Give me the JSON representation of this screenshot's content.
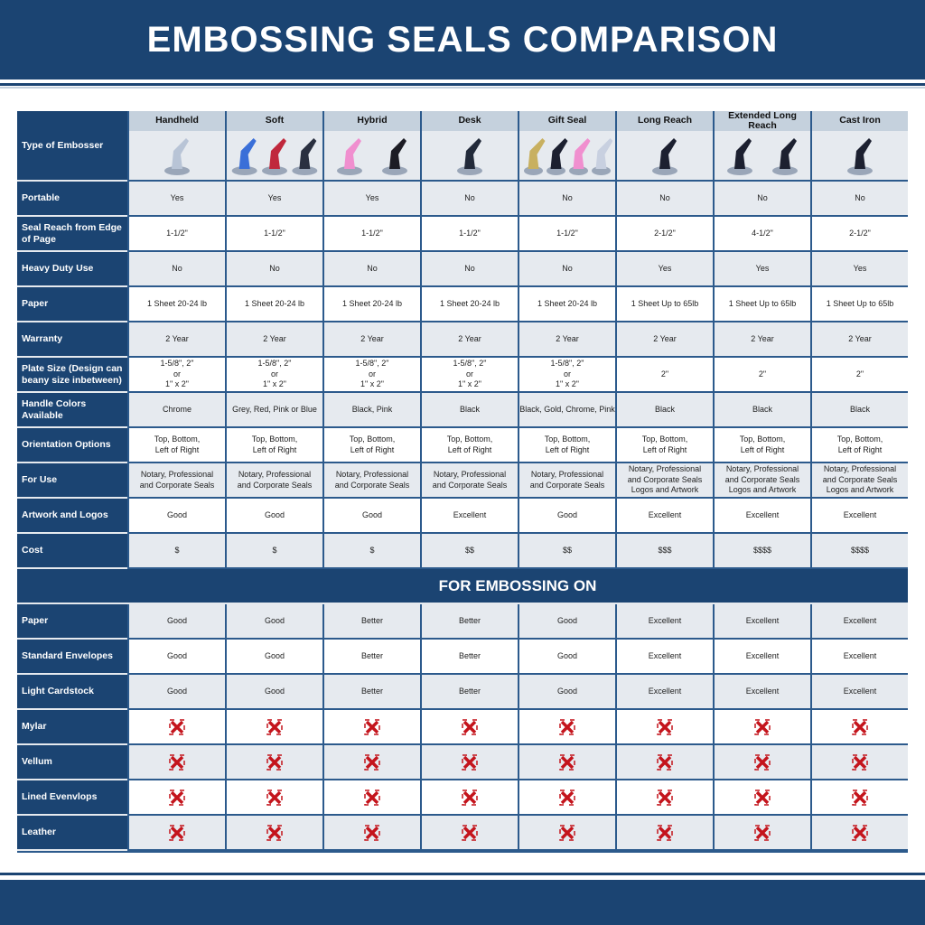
{
  "title": "EMBOSSING SEALS COMPARISON",
  "columns": [
    "Handheld",
    "Soft",
    "Hybrid",
    "Desk",
    "Gift Seal",
    "Long Reach",
    "Extended Long Reach",
    "Cast Iron"
  ],
  "type_label": "Type of Embosser",
  "product_colors": [
    [
      "#b8c4d6"
    ],
    [
      "#3a6fd8",
      "#c0283c",
      "#2a3040"
    ],
    [
      "#f08fcf",
      "#1c1c24"
    ],
    [
      "#222a3a"
    ],
    [
      "#c8b060",
      "#1c2030",
      "#f08fcf",
      "#c8d0e0"
    ],
    [
      "#1c2030"
    ],
    [
      "#1c2030",
      "#1c2030"
    ],
    [
      "#1c2030"
    ]
  ],
  "rows": [
    {
      "label": "Portable",
      "values": [
        "Yes",
        "Yes",
        "Yes",
        "No",
        "No",
        "No",
        "No",
        "No"
      ]
    },
    {
      "label": "Seal Reach from Edge of Page",
      "values": [
        "1-1/2\"",
        "1-1/2\"",
        "1-1/2\"",
        "1-1/2\"",
        "1-1/2\"",
        "2-1/2\"",
        "4-1/2\"",
        "2-1/2\""
      ]
    },
    {
      "label": "Heavy Duty Use",
      "values": [
        "No",
        "No",
        "No",
        "No",
        "No",
        "Yes",
        "Yes",
        "Yes"
      ]
    },
    {
      "label": "Paper",
      "values": [
        "1 Sheet 20-24 lb",
        "1 Sheet 20-24 lb",
        "1 Sheet 20-24 lb",
        "1 Sheet 20-24 lb",
        "1 Sheet 20-24 lb",
        "1 Sheet Up to 65lb",
        "1 Sheet Up to 65lb",
        "1 Sheet Up to 65lb"
      ]
    },
    {
      "label": "Warranty",
      "values": [
        "2 Year",
        "2 Year",
        "2 Year",
        "2 Year",
        "2 Year",
        "2 Year",
        "2 Year",
        "2 Year"
      ]
    },
    {
      "label": "Plate Size (Design can beany size inbetween)",
      "values": [
        "1-5/8\", 2\"\nor\n1\" x 2\"",
        "1-5/8\", 2\"\nor\n1\" x 2\"",
        "1-5/8\", 2\"\nor\n1\" x 2\"",
        "1-5/8\", 2\"\nor\n1\" x 2\"",
        "1-5/8\", 2\"\nor\n1\" x 2\"",
        "2\"",
        "2\"",
        "2\""
      ]
    },
    {
      "label": "Handle Colors Available",
      "values": [
        "Chrome",
        "Grey, Red, Pink or Blue",
        "Black, Pink",
        "Black",
        "Black, Gold, Chrome, Pink",
        "Black",
        "Black",
        "Black"
      ]
    },
    {
      "label": "Orientation Options",
      "values": [
        "Top, Bottom,\nLeft of Right",
        "Top, Bottom,\nLeft of Right",
        "Top, Bottom,\nLeft of Right",
        "Top, Bottom,\nLeft of Right",
        "Top, Bottom,\nLeft of Right",
        "Top, Bottom,\nLeft of Right",
        "Top, Bottom,\nLeft of Right",
        "Top, Bottom,\nLeft of Right"
      ]
    },
    {
      "label": "For Use",
      "values": [
        "Notary, Professional\nand Corporate Seals",
        "Notary, Professional\nand Corporate Seals",
        "Notary, Professional\nand Corporate Seals",
        "Notary, Professional\nand Corporate Seals",
        "Notary, Professional\nand Corporate Seals",
        "Notary, Professional\nand Corporate Seals\nLogos and Artwork",
        "Notary, Professional\nand Corporate Seals\nLogos and Artwork",
        "Notary, Professional\nand Corporate Seals\nLogos and Artwork"
      ]
    },
    {
      "label": "Artwork and Logos",
      "values": [
        "Good",
        "Good",
        "Good",
        "Excellent",
        "Good",
        "Excellent",
        "Excellent",
        "Excellent"
      ]
    },
    {
      "label": "Cost",
      "values": [
        "$",
        "$",
        "$",
        "$$",
        "$$",
        "$$$",
        "$$$$",
        "$$$$"
      ]
    }
  ],
  "section_title": "FOR EMBOSSING ON",
  "emboss_rows": [
    {
      "label": "Paper",
      "values": [
        "Good",
        "Good",
        "Better",
        "Better",
        "Good",
        "Excellent",
        "Excellent",
        "Excellent"
      ]
    },
    {
      "label": "Standard Envelopes",
      "values": [
        "Good",
        "Good",
        "Better",
        "Better",
        "Good",
        "Excellent",
        "Excellent",
        "Excellent"
      ]
    },
    {
      "label": "Light Cardstock",
      "values": [
        "Good",
        "Good",
        "Better",
        "Better",
        "Good",
        "Excellent",
        "Excellent",
        "Excellent"
      ]
    },
    {
      "label": "Mylar",
      "icon": "red-x-icon"
    },
    {
      "label": "Vellum",
      "icon": "red-x-icon"
    },
    {
      "label": "Lined Evenvlops",
      "icon": "red-x-icon"
    },
    {
      "label": "Leather",
      "icon": "red-x-icon"
    }
  ],
  "colors": {
    "navy": "#1b4472",
    "x_red": "#c4141c"
  }
}
